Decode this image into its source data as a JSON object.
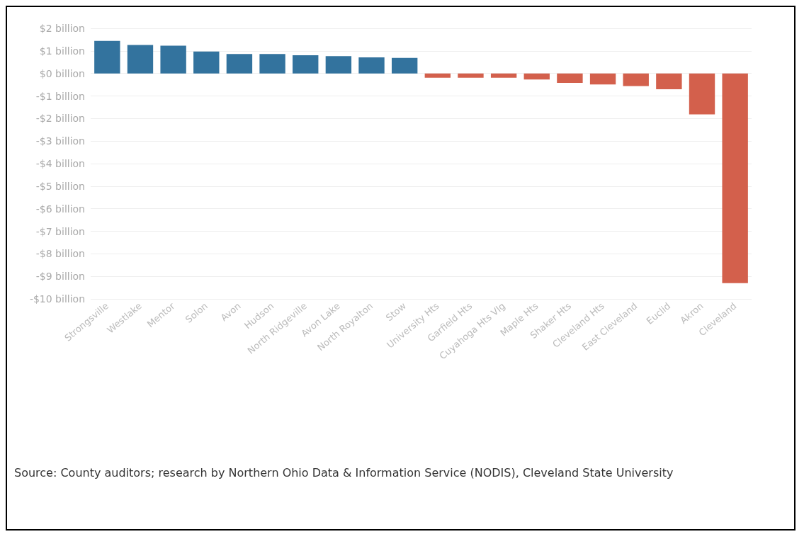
{
  "chart_data": {
    "type": "bar",
    "categories": [
      "Strongsville",
      "Westlake",
      "Mentor",
      "Solon",
      "Avon",
      "Hudson",
      "North Ridgeville",
      "Avon Lake",
      "North Royalton",
      "Stow",
      "University Hts",
      "Garfield Hts",
      "Cuyahoga Hts Vlg",
      "Maple Hts",
      "Shaker Hts",
      "Cleveland Hts",
      "East Cleveland",
      "Euclid",
      "Akron",
      "Cleveland"
    ],
    "values": [
      1.44,
      1.26,
      1.23,
      0.97,
      0.86,
      0.86,
      0.81,
      0.77,
      0.71,
      0.69,
      -0.19,
      -0.19,
      -0.19,
      -0.27,
      -0.42,
      -0.49,
      -0.56,
      -0.7,
      -1.82,
      -9.3
    ],
    "colors": [
      "#33739e",
      "#33739e",
      "#33739e",
      "#33739e",
      "#33739e",
      "#33739e",
      "#33739e",
      "#33739e",
      "#33739e",
      "#33739e",
      "#d3604c",
      "#d3604c",
      "#d3604c",
      "#d3604c",
      "#d3604c",
      "#d3604c",
      "#d3604c",
      "#d3604c",
      "#d3604c",
      "#d3604c"
    ],
    "ylim": [
      -10,
      2
    ],
    "yticks": [
      {
        "value": 2,
        "label": "$2 billion"
      },
      {
        "value": 1,
        "label": "$1 billion"
      },
      {
        "value": 0,
        "label": "$0 billion"
      },
      {
        "value": -1,
        "label": "-$1 billion"
      },
      {
        "value": -2,
        "label": "-$2 billion"
      },
      {
        "value": -3,
        "label": "-$3 billion"
      },
      {
        "value": -4,
        "label": "-$4 billion"
      },
      {
        "value": -5,
        "label": "-$5 billion"
      },
      {
        "value": -6,
        "label": "-$6 billion"
      },
      {
        "value": -7,
        "label": "-$7 billion"
      },
      {
        "value": -8,
        "label": "-$8 billion"
      },
      {
        "value": -9,
        "label": "-$9 billion"
      },
      {
        "value": -10,
        "label": "-$10 billion"
      }
    ],
    "grid": "y",
    "annotations": [
      "Source: County auditors; research by Northern Ohio Data & Information Service (NODIS), Cleveland State University"
    ]
  }
}
